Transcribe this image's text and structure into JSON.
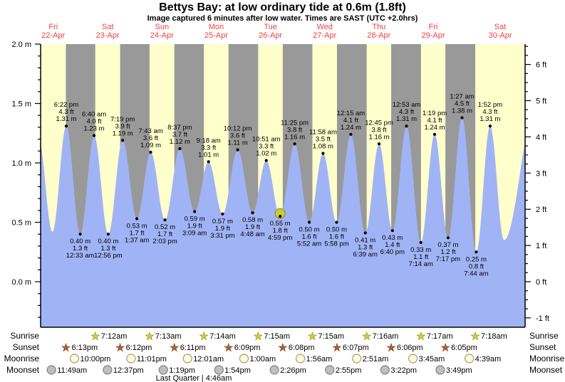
{
  "title": "Bettys Bay: at low  ordinary tide at 0.6m (1.8ft)",
  "subtitle": "Image captured 6 minutes after low water. Times are SAST (UTC +2.0hrs)",
  "colors": {
    "day_band": "#ffffcc",
    "night_band": "#999999",
    "tide_fill": "#a0b3f5",
    "day_label": "#f04040",
    "axis": "#000000",
    "tide_label": "#000000",
    "current_marker_fill": "#c9cb37",
    "current_marker_stroke": "#86881e",
    "sunrise_star_fill": "#d6cf2e",
    "sunrise_star_stroke": "#7f7a00",
    "sunset_star_fill": "#b06038",
    "sunset_star_stroke": "#6f3317",
    "moonrise_fill": "#ffffd0",
    "moonrise_stroke": "#999999",
    "moonset_fill": "#bfbfbf",
    "moonset_stroke": "#7f7f7f"
  },
  "chart_data": {
    "type": "area",
    "title": "Bettys Bay: at low  ordinary tide at 0.6m (1.8ft)",
    "subtitle": "Image captured 6 minutes after low water. Times are SAST (UTC +2.0hrs)",
    "ylabel_left_unit": "m",
    "ylabel_right_unit": "ft",
    "ylim_m": [
      -0.37,
      2.0
    ],
    "left_axis_ticks": [
      {
        "v": 2.0,
        "label": "2.0 m"
      },
      {
        "v": 1.5,
        "label": "1.5 m"
      },
      {
        "v": 1.0,
        "label": "1.0 m"
      },
      {
        "v": 0.5,
        "label": "0.5 m"
      },
      {
        "v": 0.0,
        "label": "0.0 m"
      }
    ],
    "right_axis_ticks": [
      {
        "v": 6,
        "label": "6 ft"
      },
      {
        "v": 5,
        "label": "5 ft"
      },
      {
        "v": 4,
        "label": "4 ft"
      },
      {
        "v": 3,
        "label": "3 ft"
      },
      {
        "v": 2,
        "label": "2 ft"
      },
      {
        "v": 1,
        "label": "1 ft"
      },
      {
        "v": 0,
        "label": "0 ft"
      },
      {
        "v": -1,
        "label": "-1 ft"
      }
    ],
    "days": [
      {
        "name": "Fri",
        "date": "22-Apr"
      },
      {
        "name": "Sat",
        "date": "23-Apr"
      },
      {
        "name": "Sun",
        "date": "24-Apr"
      },
      {
        "name": "Mon",
        "date": "25-Apr"
      },
      {
        "name": "Tue",
        "date": "26-Apr"
      },
      {
        "name": "Wed",
        "date": "27-Apr"
      },
      {
        "name": "Thu",
        "date": "28-Apr"
      },
      {
        "name": "Fri",
        "date": "29-Apr"
      },
      {
        "name": "Sat",
        "date": "30-Apr"
      }
    ],
    "tides": [
      {
        "d": 0,
        "h": 6.08,
        "m": 1.21,
        "hi": true,
        "syn": true
      },
      {
        "d": 0,
        "h": 12.25,
        "m": 0.42,
        "hi": false,
        "syn": true
      },
      {
        "d": 0,
        "time": "6:22 pm",
        "ft": "4.3 ft",
        "m": 1.31,
        "hi": true
      },
      {
        "d": 1,
        "time": "12:33 am",
        "ft": "1.3 ft",
        "m": 0.4,
        "hi": false
      },
      {
        "d": 1,
        "time": "6:40 am",
        "ft": "4.0 ft",
        "m": 1.23,
        "hi": true
      },
      {
        "d": 1,
        "time": "12:56 pm",
        "ft": "1.3 ft",
        "m": 0.4,
        "hi": false
      },
      {
        "d": 1,
        "time": "7:19 pm",
        "ft": "3.9 ft",
        "m": 1.19,
        "hi": true
      },
      {
        "d": 2,
        "time": "1:37 am",
        "ft": "1.7 ft",
        "m": 0.53,
        "hi": false
      },
      {
        "d": 2,
        "time": "7:43 am",
        "ft": "3.6 ft",
        "m": 1.09,
        "hi": true
      },
      {
        "d": 2,
        "time": "2:03 pm",
        "ft": "1.7 ft",
        "m": 0.52,
        "hi": false
      },
      {
        "d": 2,
        "time": "8:37 pm",
        "ft": "3.7 ft",
        "m": 1.12,
        "hi": true
      },
      {
        "d": 3,
        "time": "3:09 am",
        "ft": "1.9 ft",
        "m": 0.59,
        "hi": false
      },
      {
        "d": 3,
        "time": "9:18 am",
        "ft": "3.3 ft",
        "m": 1.01,
        "hi": true
      },
      {
        "d": 3,
        "time": "3:31 pm",
        "ft": "1.9 ft",
        "m": 0.57,
        "hi": false
      },
      {
        "d": 3,
        "time": "10:12 pm",
        "ft": "3.6 ft",
        "m": 1.11,
        "hi": true
      },
      {
        "d": 4,
        "time": "4:48 am",
        "ft": "1.9 ft",
        "m": 0.58,
        "hi": false
      },
      {
        "d": 4,
        "time": "10:51 am",
        "ft": "3.3 ft",
        "m": 1.02,
        "hi": true
      },
      {
        "d": 4,
        "time": "4:59 pm",
        "ft": "1.8 ft",
        "m": 0.55,
        "hi": false,
        "now": true
      },
      {
        "d": 4,
        "time": "11:25 pm",
        "ft": "3.8 ft",
        "m": 1.16,
        "hi": true
      },
      {
        "d": 5,
        "time": "5:52 am",
        "ft": "1.6 ft",
        "m": 0.5,
        "hi": false
      },
      {
        "d": 5,
        "time": "11:58 am",
        "ft": "3.5 ft",
        "m": 1.08,
        "hi": true
      },
      {
        "d": 5,
        "time": "5:58 pm",
        "ft": "1.6 ft",
        "m": 0.5,
        "hi": false
      },
      {
        "d": 6,
        "time": "12:15 am",
        "ft": "4.1 ft",
        "m": 1.24,
        "hi": true
      },
      {
        "d": 6,
        "time": "6:39 am",
        "ft": "1.3 ft",
        "m": 0.41,
        "hi": false
      },
      {
        "d": 6,
        "time": "12:45 pm",
        "ft": "3.8 ft",
        "m": 1.16,
        "hi": true
      },
      {
        "d": 6,
        "time": "6:40 pm",
        "ft": "1.4 ft",
        "m": 0.43,
        "hi": false
      },
      {
        "d": 7,
        "time": "12:53 am",
        "ft": "4.3 ft",
        "m": 1.31,
        "hi": true
      },
      {
        "d": 7,
        "time": "7:14 am",
        "ft": "1.1 ft",
        "m": 0.33,
        "hi": false
      },
      {
        "d": 7,
        "time": "1:19 pm",
        "ft": "4.1 ft",
        "m": 1.24,
        "hi": true
      },
      {
        "d": 7,
        "time": "7:17 pm",
        "ft": "1.2 ft",
        "m": 0.37,
        "hi": false
      },
      {
        "d": 8,
        "time": "1:27 am",
        "ft": "4.5 ft",
        "m": 1.38,
        "hi": true
      },
      {
        "d": 8,
        "time": "7:44 am",
        "ft": "0.8 ft",
        "m": 0.25,
        "hi": false
      },
      {
        "d": 8,
        "time": "1:52 pm",
        "ft": "4.3 ft",
        "m": 1.31,
        "hi": true
      },
      {
        "d": 8,
        "h": 20.0,
        "m": 0.35,
        "hi": false,
        "syn": true
      },
      {
        "d": 9,
        "h": 10.4,
        "m": 1.5,
        "hi": true,
        "syn": true
      }
    ],
    "sun_moon": {
      "sunrise": {
        "label": "Sunrise",
        "entries": [
          {
            "t": "7:12am",
            "d": 1
          },
          {
            "t": "7:13am",
            "d": 2
          },
          {
            "t": "7:14am",
            "d": 3
          },
          {
            "t": "7:15am",
            "d": 4
          },
          {
            "t": "7:15am",
            "d": 5
          },
          {
            "t": "7:16am",
            "d": 6
          },
          {
            "t": "7:17am",
            "d": 7
          },
          {
            "t": "7:18am",
            "d": 8
          }
        ]
      },
      "sunset": {
        "label": "Sunset",
        "entries": [
          {
            "t": "6:13pm",
            "d": 0
          },
          {
            "t": "6:12pm",
            "d": 1
          },
          {
            "t": "6:11pm",
            "d": 2
          },
          {
            "t": "6:09pm",
            "d": 3
          },
          {
            "t": "6:08pm",
            "d": 4
          },
          {
            "t": "6:07pm",
            "d": 5
          },
          {
            "t": "6:06pm",
            "d": 6
          },
          {
            "t": "6:05pm",
            "d": 7
          }
        ]
      },
      "moonrise": {
        "label": "Moonrise",
        "entries": [
          {
            "t": "10:00pm",
            "d": 0
          },
          {
            "t": "11:01pm",
            "d": 1
          },
          {
            "t": "12:01am",
            "d": 3
          },
          {
            "t": "1:00am",
            "d": 4
          },
          {
            "t": "1:56am",
            "d": 5
          },
          {
            "t": "2:51am",
            "d": 6
          },
          {
            "t": "3:45am",
            "d": 7
          },
          {
            "t": "4:39am",
            "d": 8
          }
        ]
      },
      "moonset": {
        "label": "Moonset",
        "entries": [
          {
            "t": "11:49am",
            "d": 0
          },
          {
            "t": "12:37pm",
            "d": 1
          },
          {
            "t": "1:19pm",
            "d": 2
          },
          {
            "t": "1:54pm",
            "d": 3
          },
          {
            "t": "2:26pm",
            "d": 4
          },
          {
            "t": "2:55pm",
            "d": 5
          },
          {
            "t": "3:22pm",
            "d": 6
          },
          {
            "t": "3:49pm",
            "d": 7
          }
        ]
      },
      "moon_phase": "Last Quarter | 4:46am"
    }
  }
}
